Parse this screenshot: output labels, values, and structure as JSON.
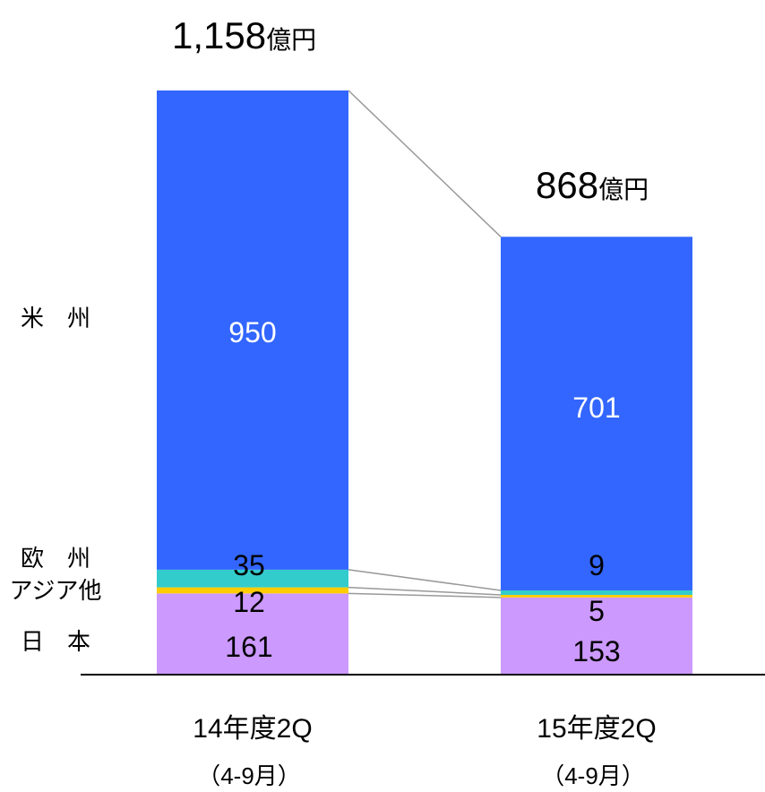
{
  "chart_data": {
    "type": "bar",
    "stacked": true,
    "categories": [
      "14年度2Q",
      "15年度2Q"
    ],
    "category_periods": [
      "（4-9月）",
      "（4-9月）"
    ],
    "series": [
      {
        "name": "日　本",
        "values": [
          161,
          153
        ],
        "color": "#cc99ff",
        "label_color": "#000000"
      },
      {
        "name": "アジア他",
        "values": [
          12,
          5
        ],
        "color": "#ffcc00",
        "label_color": "#000000"
      },
      {
        "name": "欧　州",
        "values": [
          35,
          9
        ],
        "color": "#33cccc",
        "label_color": "#000000"
      },
      {
        "name": "米　州",
        "values": [
          950,
          701
        ],
        "color": "#3366ff",
        "label_color": "#ffffff"
      }
    ],
    "totals": [
      {
        "value": "1,158",
        "unit": "億円"
      },
      {
        "value": "868",
        "unit": "億円"
      }
    ],
    "connector_color": "#999999",
    "ylim": [
      0,
      1158
    ]
  }
}
